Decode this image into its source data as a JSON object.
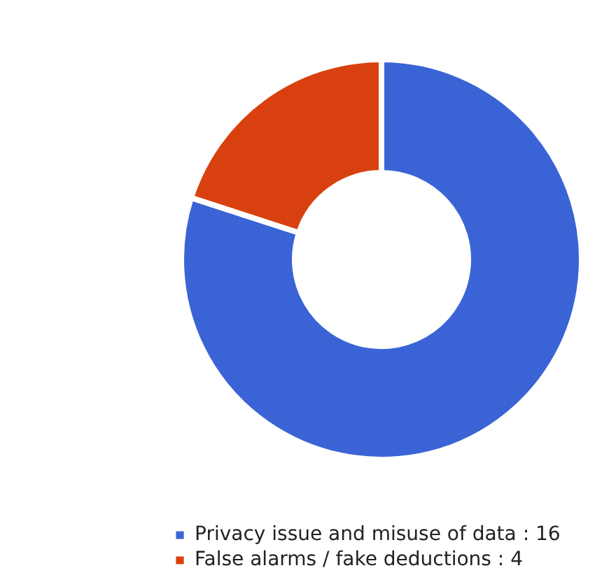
{
  "chart_data": {
    "type": "donut",
    "categories": [
      "Privacy issue and misuse of data : 16",
      "False alarms / fake deductions : 4"
    ],
    "values": [
      16,
      4
    ],
    "colors": [
      "#3a64d6",
      "#d8410f"
    ],
    "legend": "bottom left"
  }
}
